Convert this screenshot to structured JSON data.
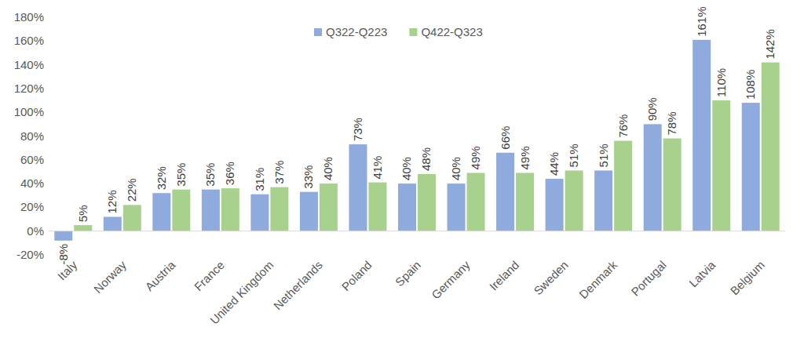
{
  "chart_data": {
    "type": "bar",
    "categories": [
      "Italy",
      "Norway",
      "Austria",
      "France",
      "United Kingdom",
      "Netherlands",
      "Poland",
      "Spain",
      "Germany",
      "Ireland",
      "Sweden",
      "Denmark",
      "Portugal",
      "Latvia",
      "Belgium"
    ],
    "series": [
      {
        "name": "Q322-Q223",
        "color": "#8faadc",
        "values": [
          -8,
          12,
          32,
          35,
          31,
          33,
          73,
          40,
          40,
          66,
          44,
          51,
          90,
          161,
          108
        ],
        "value_labels": [
          "-8%",
          "12%",
          "32%",
          "35%",
          "31%",
          "33%",
          "73%",
          "40%",
          "40%",
          "66%",
          "44%",
          "51%",
          "90%",
          "161%",
          "108%"
        ]
      },
      {
        "name": "Q422-Q323",
        "color": "#a9d18e",
        "values": [
          5,
          22,
          35,
          36,
          37,
          40,
          41,
          48,
          49,
          49,
          51,
          76,
          78,
          110,
          142
        ],
        "value_labels": [
          "5%",
          "22%",
          "35%",
          "36%",
          "37%",
          "40%",
          "41%",
          "48%",
          "49%",
          "49%",
          "51%",
          "76%",
          "78%",
          "110%",
          "142%"
        ]
      }
    ],
    "ylim": [
      -20,
      180
    ],
    "yticks": [
      {
        "value": -20,
        "label": "-20%"
      },
      {
        "value": 0,
        "label": "0%"
      },
      {
        "value": 20,
        "label": "20%"
      },
      {
        "value": 40,
        "label": "40%"
      },
      {
        "value": 60,
        "label": "60%"
      },
      {
        "value": 80,
        "label": "80%"
      },
      {
        "value": 100,
        "label": "100%"
      },
      {
        "value": 120,
        "label": "120%"
      },
      {
        "value": 140,
        "label": "140%"
      },
      {
        "value": 160,
        "label": "160%"
      },
      {
        "value": 180,
        "label": "180%"
      }
    ],
    "grid": false,
    "legend": "top",
    "data_labels": true
  }
}
